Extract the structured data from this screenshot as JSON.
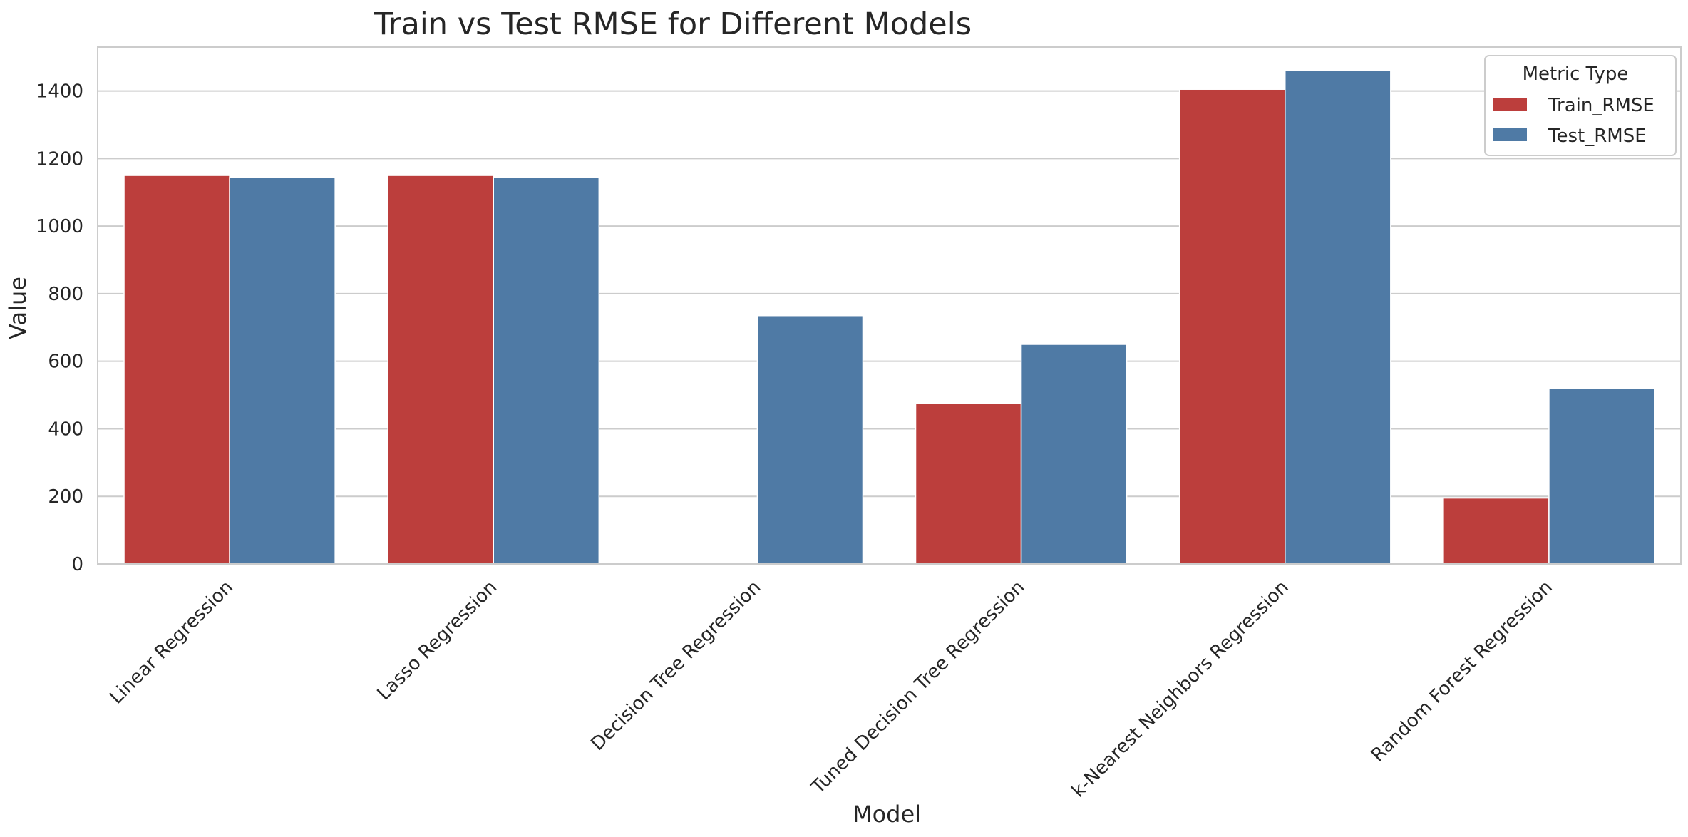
{
  "chart_data": {
    "type": "bar",
    "title": "Train vs Test RMSE for Different Models",
    "xlabel": "Model",
    "ylabel": "Value",
    "categories": [
      "Linear Regression",
      "Lasso Regression",
      "Decision Tree Regression",
      "Tuned Decision Tree Regression",
      "k-Nearest Neighbors Regression",
      "Random Forest Regression"
    ],
    "series": [
      {
        "name": "Train_RMSE",
        "color": "#bc3e3c",
        "values": [
          1150,
          1150,
          0,
          475,
          1405,
          195
        ]
      },
      {
        "name": "Test_RMSE",
        "color": "#4f7aa5",
        "values": [
          1145,
          1145,
          735,
          650,
          1460,
          520
        ]
      }
    ],
    "ylim": [
      0,
      1530
    ],
    "yticks": [
      "0",
      "200",
      "400",
      "600",
      "800",
      "1000",
      "1200",
      "1400"
    ],
    "grid": true,
    "legend": {
      "title": "Metric Type",
      "position": "top-right"
    }
  }
}
